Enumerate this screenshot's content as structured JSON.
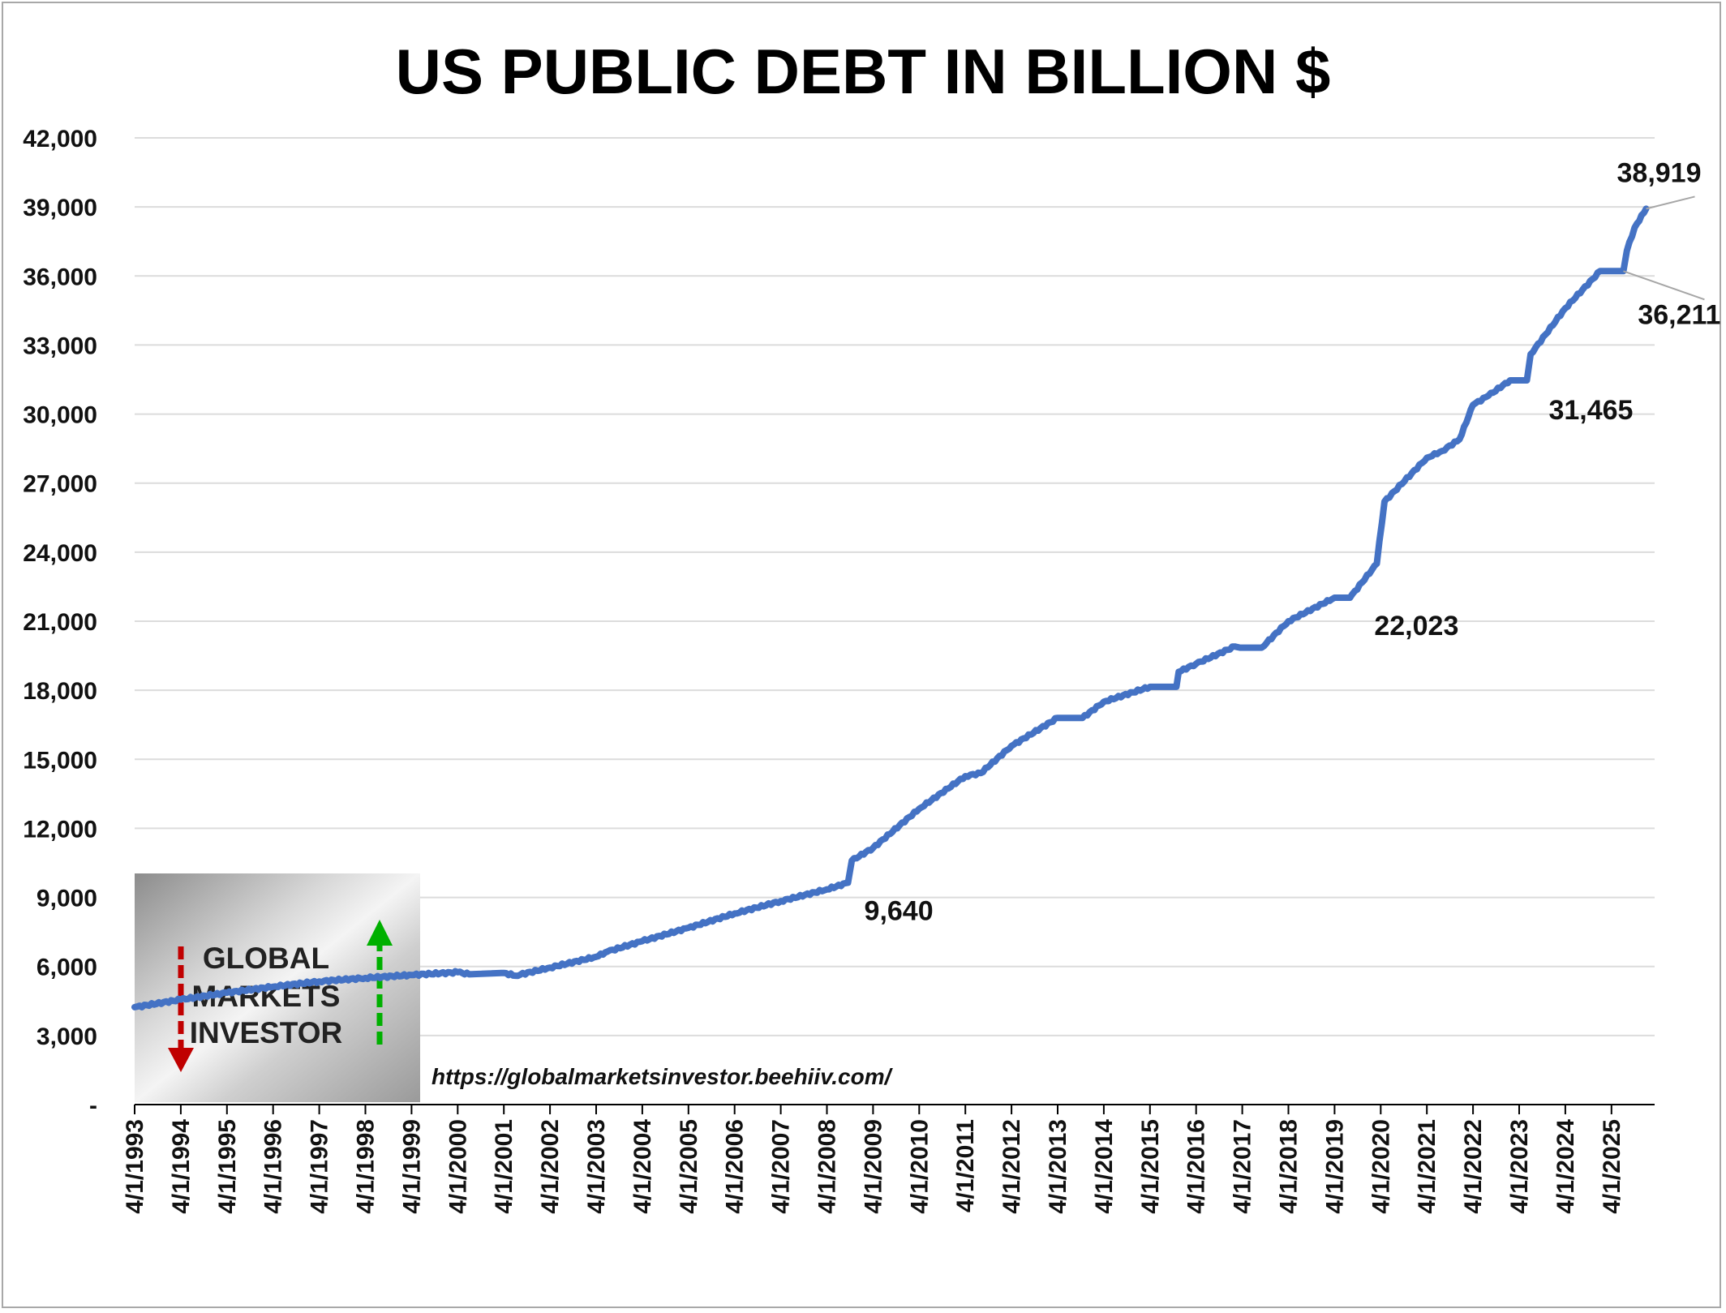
{
  "chart_data": {
    "type": "line",
    "title": "US PUBLIC DEBT IN BILLION $",
    "xlabel": "",
    "ylabel": "",
    "ylim": [
      0,
      42000
    ],
    "yticks": [
      {
        "value": 0,
        "label": "-"
      },
      {
        "value": 3000,
        "label": "3,000"
      },
      {
        "value": 6000,
        "label": "6,000"
      },
      {
        "value": 9000,
        "label": "9,000"
      },
      {
        "value": 12000,
        "label": "12,000"
      },
      {
        "value": 15000,
        "label": "15,000"
      },
      {
        "value": 18000,
        "label": "18,000"
      },
      {
        "value": 21000,
        "label": "21,000"
      },
      {
        "value": 24000,
        "label": "24,000"
      },
      {
        "value": 27000,
        "label": "27,000"
      },
      {
        "value": 30000,
        "label": "30,000"
      },
      {
        "value": 33000,
        "label": "33,000"
      },
      {
        "value": 36000,
        "label": "36,000"
      },
      {
        "value": 39000,
        "label": "39,000"
      },
      {
        "value": 42000,
        "label": "42,000"
      }
    ],
    "xticks": [
      "4/1/1993",
      "4/1/1994",
      "4/1/1995",
      "4/1/1996",
      "4/1/1997",
      "4/1/1998",
      "4/1/1999",
      "4/1/2000",
      "4/1/2001",
      "4/1/2002",
      "4/1/2003",
      "4/1/2004",
      "4/1/2005",
      "4/1/2006",
      "4/1/2007",
      "4/1/2008",
      "4/1/2009",
      "4/1/2010",
      "4/1/2011",
      "4/1/2012",
      "4/1/2013",
      "4/1/2014",
      "4/1/2015",
      "4/1/2016",
      "4/1/2017",
      "4/1/2018",
      "4/1/2019",
      "4/1/2020",
      "4/1/2021",
      "4/1/2022",
      "4/1/2023",
      "4/1/2024",
      "4/1/2025"
    ],
    "grid": true,
    "line_color": "#4472c4",
    "series": [
      {
        "points": [
          [
            "1993-04-01",
            4230
          ],
          [
            "1994-04-01",
            4560
          ],
          [
            "1995-04-01",
            4860
          ],
          [
            "1996-04-01",
            5120
          ],
          [
            "1997-04-01",
            5350
          ],
          [
            "1998-04-01",
            5500
          ],
          [
            "1999-04-01",
            5630
          ],
          [
            "2000-04-01",
            5750
          ],
          [
            "2000-07-01",
            5660
          ],
          [
            "2001-04-01",
            5720
          ],
          [
            "2001-07-01",
            5600
          ],
          [
            "2002-04-01",
            5950
          ],
          [
            "2003-04-01",
            6420
          ],
          [
            "2003-07-01",
            6650
          ],
          [
            "2004-04-01",
            7100
          ],
          [
            "2005-04-01",
            7680
          ],
          [
            "2006-04-01",
            8300
          ],
          [
            "2007-04-01",
            8840
          ],
          [
            "2008-04-01",
            9350
          ],
          [
            "2008-09-15",
            9640
          ],
          [
            "2008-10-15",
            10600
          ],
          [
            "2009-04-01",
            11150
          ],
          [
            "2010-04-01",
            12850
          ],
          [
            "2011-04-01",
            14270
          ],
          [
            "2011-08-01",
            14400
          ],
          [
            "2012-04-01",
            15580
          ],
          [
            "2013-04-01",
            16800
          ],
          [
            "2013-10-15",
            16800
          ],
          [
            "2014-04-01",
            17500
          ],
          [
            "2015-04-01",
            18150
          ],
          [
            "2015-10-28",
            18150
          ],
          [
            "2015-11-15",
            18800
          ],
          [
            "2016-04-01",
            19150
          ],
          [
            "2017-02-01",
            19900
          ],
          [
            "2017-03-15",
            19850
          ],
          [
            "2017-09-01",
            19850
          ],
          [
            "2018-04-01",
            21000
          ],
          [
            "2019-04-01",
            22023
          ],
          [
            "2019-08-01",
            22023
          ],
          [
            "2020-03-01",
            23500
          ],
          [
            "2020-05-01",
            26200
          ],
          [
            "2021-04-01",
            28100
          ],
          [
            "2021-08-01",
            28400
          ],
          [
            "2021-12-15",
            28900
          ],
          [
            "2022-04-01",
            30400
          ],
          [
            "2022-08-01",
            30800
          ],
          [
            "2023-01-19",
            31465
          ],
          [
            "2023-06-01",
            31465
          ],
          [
            "2023-07-01",
            32600
          ],
          [
            "2024-04-01",
            34600
          ],
          [
            "2025-01-01",
            36211
          ],
          [
            "2025-07-04",
            36211
          ],
          [
            "2025-08-01",
            37100
          ],
          [
            "2025-10-01",
            38100
          ],
          [
            "2025-12-31",
            38919
          ]
        ]
      }
    ],
    "annotations": [
      {
        "label": "9,640",
        "date": "2008-09-15",
        "value": 9640
      },
      {
        "label": "22,023",
        "date": "2019-08-01",
        "value": 22023
      },
      {
        "label": "31,465",
        "date": "2023-06-01",
        "value": 31465
      },
      {
        "label": "36,211",
        "date": "2025-07-04",
        "value": 36211
      },
      {
        "label": "38,919",
        "date": "2025-12-31",
        "value": 38919
      }
    ]
  },
  "watermark": {
    "lines": [
      "GLOBAL",
      "MARKETS",
      "INVESTOR"
    ],
    "url": "https://globalmarketsinvestor.beehiiv.com/",
    "arrow_down_color": "#c00000",
    "arrow_up_color": "#00b000"
  }
}
